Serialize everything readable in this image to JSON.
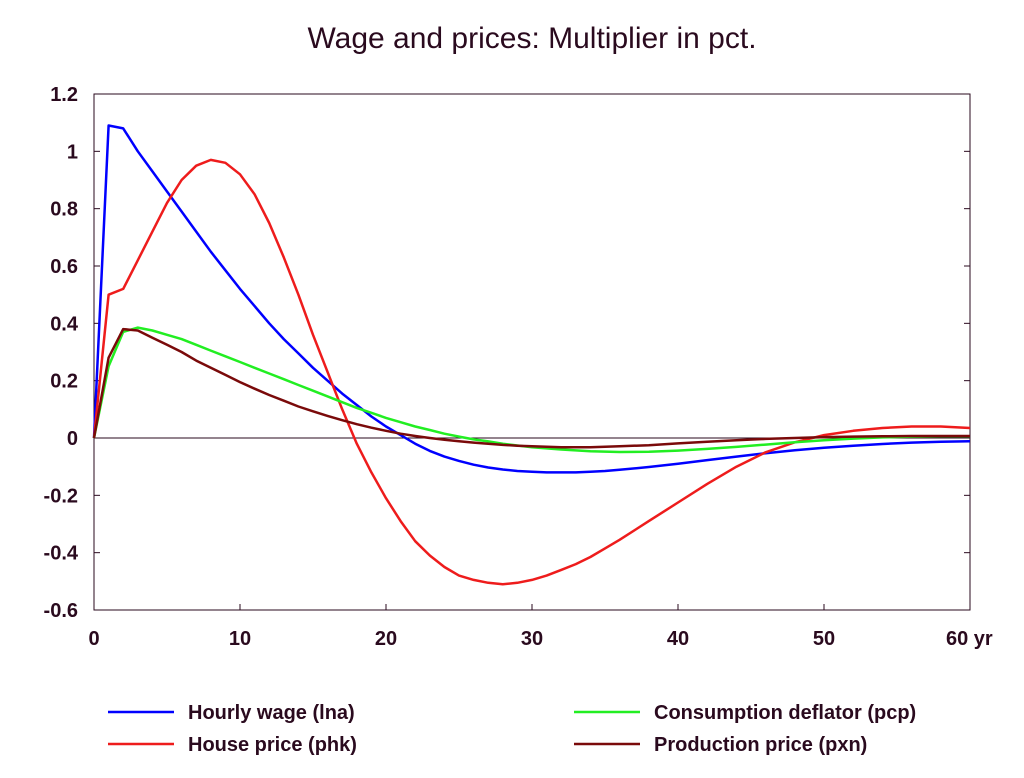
{
  "chart_data": {
    "type": "line",
    "title": "Wage and prices: Multiplier in pct.",
    "xlabel": "",
    "ylabel": "",
    "x_unit_label": "yr",
    "xlim": [
      0,
      60
    ],
    "ylim": [
      -0.6,
      1.2
    ],
    "x_ticks": [
      0,
      10,
      20,
      30,
      40,
      50,
      60
    ],
    "x_tick_labels": [
      "0",
      "10",
      "20",
      "30",
      "40",
      "50",
      "60 yr"
    ],
    "y_ticks": [
      1.2,
      1,
      0.8,
      0.6,
      0.4,
      0.2,
      0,
      -0.2,
      -0.4,
      -0.6
    ],
    "y_tick_labels": [
      "1.2",
      "1",
      "0.8",
      "0.6",
      "0.4",
      "0.2",
      "0",
      "-0.2",
      "-0.4",
      "-0.6"
    ],
    "grid": false,
    "legend_position": "bottom",
    "series": [
      {
        "name": "Hourly wage (lna)",
        "color": "#0000ff",
        "points": [
          [
            0,
            0
          ],
          [
            1,
            1.09
          ],
          [
            2,
            1.08
          ],
          [
            3,
            1.0
          ],
          [
            4,
            0.93
          ],
          [
            5,
            0.86
          ],
          [
            6,
            0.79
          ],
          [
            7,
            0.72
          ],
          [
            8,
            0.65
          ],
          [
            9,
            0.585
          ],
          [
            10,
            0.52
          ],
          [
            11,
            0.46
          ],
          [
            12,
            0.4
          ],
          [
            13,
            0.345
          ],
          [
            14,
            0.295
          ],
          [
            15,
            0.245
          ],
          [
            16,
            0.2
          ],
          [
            17,
            0.155
          ],
          [
            18,
            0.115
          ],
          [
            19,
            0.075
          ],
          [
            20,
            0.04
          ],
          [
            21,
            0.01
          ],
          [
            22,
            -0.02
          ],
          [
            23,
            -0.045
          ],
          [
            24,
            -0.065
          ],
          [
            25,
            -0.08
          ],
          [
            26,
            -0.093
          ],
          [
            27,
            -0.103
          ],
          [
            28,
            -0.11
          ],
          [
            29,
            -0.115
          ],
          [
            30,
            -0.118
          ],
          [
            31,
            -0.12
          ],
          [
            32,
            -0.12
          ],
          [
            33,
            -0.12
          ],
          [
            34,
            -0.118
          ],
          [
            35,
            -0.115
          ],
          [
            36,
            -0.111
          ],
          [
            38,
            -0.101
          ],
          [
            40,
            -0.09
          ],
          [
            42,
            -0.077
          ],
          [
            44,
            -0.065
          ],
          [
            46,
            -0.053
          ],
          [
            48,
            -0.043
          ],
          [
            50,
            -0.034
          ],
          [
            52,
            -0.027
          ],
          [
            54,
            -0.021
          ],
          [
            56,
            -0.016
          ],
          [
            58,
            -0.013
          ],
          [
            60,
            -0.011
          ]
        ]
      },
      {
        "name": "House price (phk)",
        "color": "#ee1c1c",
        "points": [
          [
            0,
            0
          ],
          [
            1,
            0.5
          ],
          [
            2,
            0.52
          ],
          [
            3,
            0.62
          ],
          [
            4,
            0.72
          ],
          [
            5,
            0.82
          ],
          [
            6,
            0.9
          ],
          [
            7,
            0.95
          ],
          [
            8,
            0.97
          ],
          [
            9,
            0.96
          ],
          [
            10,
            0.92
          ],
          [
            11,
            0.85
          ],
          [
            12,
            0.75
          ],
          [
            13,
            0.63
          ],
          [
            14,
            0.5
          ],
          [
            15,
            0.36
          ],
          [
            16,
            0.23
          ],
          [
            17,
            0.1
          ],
          [
            18,
            -0.02
          ],
          [
            19,
            -0.12
          ],
          [
            20,
            -0.21
          ],
          [
            21,
            -0.29
          ],
          [
            22,
            -0.36
          ],
          [
            23,
            -0.41
          ],
          [
            24,
            -0.45
          ],
          [
            25,
            -0.48
          ],
          [
            26,
            -0.495
          ],
          [
            27,
            -0.505
          ],
          [
            28,
            -0.51
          ],
          [
            29,
            -0.505
          ],
          [
            30,
            -0.495
          ],
          [
            31,
            -0.48
          ],
          [
            32,
            -0.46
          ],
          [
            33,
            -0.44
          ],
          [
            34,
            -0.415
          ],
          [
            35,
            -0.385
          ],
          [
            36,
            -0.355
          ],
          [
            38,
            -0.29
          ],
          [
            40,
            -0.225
          ],
          [
            42,
            -0.16
          ],
          [
            44,
            -0.1
          ],
          [
            46,
            -0.05
          ],
          [
            48,
            -0.015
          ],
          [
            50,
            0.01
          ],
          [
            52,
            0.025
          ],
          [
            54,
            0.035
          ],
          [
            56,
            0.04
          ],
          [
            58,
            0.04
          ],
          [
            60,
            0.035
          ]
        ]
      },
      {
        "name": "Consumption deflator (pcp)",
        "color": "#22ee22",
        "points": [
          [
            0,
            0
          ],
          [
            1,
            0.25
          ],
          [
            2,
            0.37
          ],
          [
            3,
            0.385
          ],
          [
            4,
            0.375
          ],
          [
            5,
            0.36
          ],
          [
            6,
            0.345
          ],
          [
            7,
            0.325
          ],
          [
            8,
            0.305
          ],
          [
            9,
            0.285
          ],
          [
            10,
            0.265
          ],
          [
            11,
            0.245
          ],
          [
            12,
            0.225
          ],
          [
            13,
            0.205
          ],
          [
            14,
            0.185
          ],
          [
            15,
            0.165
          ],
          [
            16,
            0.145
          ],
          [
            17,
            0.125
          ],
          [
            18,
            0.105
          ],
          [
            19,
            0.088
          ],
          [
            20,
            0.07
          ],
          [
            21,
            0.055
          ],
          [
            22,
            0.04
          ],
          [
            23,
            0.028
          ],
          [
            24,
            0.015
          ],
          [
            25,
            0.005
          ],
          [
            26,
            -0.005
          ],
          [
            27,
            -0.012
          ],
          [
            28,
            -0.02
          ],
          [
            29,
            -0.026
          ],
          [
            30,
            -0.032
          ],
          [
            32,
            -0.04
          ],
          [
            34,
            -0.046
          ],
          [
            36,
            -0.049
          ],
          [
            38,
            -0.048
          ],
          [
            40,
            -0.044
          ],
          [
            42,
            -0.038
          ],
          [
            44,
            -0.031
          ],
          [
            46,
            -0.023
          ],
          [
            48,
            -0.015
          ],
          [
            50,
            -0.008
          ],
          [
            52,
            -0.002
          ],
          [
            54,
            0.002
          ],
          [
            56,
            0.005
          ],
          [
            58,
            0.006
          ],
          [
            60,
            0.006
          ]
        ]
      },
      {
        "name": "Production price (pxn)",
        "color": "#7a0a0a",
        "points": [
          [
            0,
            0
          ],
          [
            1,
            0.28
          ],
          [
            2,
            0.38
          ],
          [
            3,
            0.375
          ],
          [
            4,
            0.35
          ],
          [
            5,
            0.325
          ],
          [
            6,
            0.3
          ],
          [
            7,
            0.27
          ],
          [
            8,
            0.245
          ],
          [
            9,
            0.22
          ],
          [
            10,
            0.195
          ],
          [
            11,
            0.172
          ],
          [
            12,
            0.15
          ],
          [
            13,
            0.13
          ],
          [
            14,
            0.11
          ],
          [
            15,
            0.093
          ],
          [
            16,
            0.077
          ],
          [
            17,
            0.062
          ],
          [
            18,
            0.048
          ],
          [
            19,
            0.036
          ],
          [
            20,
            0.025
          ],
          [
            21,
            0.015
          ],
          [
            22,
            0.007
          ],
          [
            23,
            0.0
          ],
          [
            24,
            -0.006
          ],
          [
            25,
            -0.011
          ],
          [
            26,
            -0.016
          ],
          [
            27,
            -0.02
          ],
          [
            28,
            -0.024
          ],
          [
            29,
            -0.027
          ],
          [
            30,
            -0.029
          ],
          [
            32,
            -0.032
          ],
          [
            34,
            -0.032
          ],
          [
            36,
            -0.029
          ],
          [
            38,
            -0.025
          ],
          [
            40,
            -0.019
          ],
          [
            42,
            -0.013
          ],
          [
            44,
            -0.008
          ],
          [
            46,
            -0.003
          ],
          [
            48,
            0.0
          ],
          [
            50,
            0.003
          ],
          [
            52,
            0.005
          ],
          [
            54,
            0.006
          ],
          [
            56,
            0.007
          ],
          [
            58,
            0.007
          ],
          [
            60,
            0.007
          ]
        ]
      }
    ]
  }
}
